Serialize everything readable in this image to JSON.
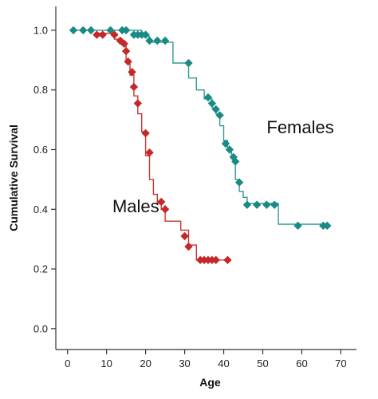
{
  "chart_data": {
    "type": "line",
    "title": "",
    "xlabel": "Age",
    "ylabel": "Cumulative Survival",
    "xlim": [
      -3,
      74
    ],
    "ylim": [
      -0.07,
      1.08
    ],
    "xticks": [
      0,
      10,
      20,
      30,
      40,
      50,
      60,
      70
    ],
    "xtick_labels": [
      "0",
      "10",
      "20",
      "30",
      "40",
      "50",
      "60",
      "70"
    ],
    "yticks": [
      0.0,
      0.2,
      0.4,
      0.6,
      0.8,
      1.0
    ],
    "ytick_labels": [
      "0.0",
      "0.2",
      "0.4",
      "0.6",
      "0.8",
      "1.0"
    ],
    "grid": false,
    "legend": "inline labels",
    "series": [
      {
        "name": "Females",
        "color": "#1a8a84",
        "line_color": "#2e9a94",
        "step_x": [
          1,
          19,
          19,
          21,
          21,
          27,
          27,
          31,
          31,
          33,
          33,
          35,
          35,
          37,
          37,
          38,
          38,
          39,
          39,
          40,
          40,
          41,
          41,
          42,
          42,
          43,
          43,
          44,
          44,
          45,
          45,
          46,
          46,
          54,
          54,
          67
        ],
        "step_y": [
          1.0,
          1.0,
          0.98,
          0.98,
          0.96,
          0.96,
          0.89,
          0.89,
          0.84,
          0.84,
          0.8,
          0.8,
          0.77,
          0.77,
          0.74,
          0.74,
          0.72,
          0.72,
          0.68,
          0.68,
          0.63,
          0.63,
          0.6,
          0.6,
          0.57,
          0.57,
          0.5,
          0.5,
          0.46,
          0.46,
          0.44,
          0.44,
          0.42,
          0.42,
          0.35,
          0.35
        ],
        "points_x": [
          1.5,
          4,
          6,
          11,
          14,
          15,
          17,
          18,
          19,
          20,
          21,
          23,
          25,
          31,
          36,
          37,
          38,
          39,
          40.5,
          41.5,
          42.5,
          43,
          44,
          46,
          48.5,
          51,
          53,
          59,
          65.5,
          66.5
        ],
        "points_y": [
          1.0,
          1.0,
          1.0,
          1.0,
          1.0,
          1.0,
          0.985,
          0.985,
          0.985,
          0.985,
          0.965,
          0.965,
          0.965,
          0.89,
          0.775,
          0.755,
          0.735,
          0.715,
          0.62,
          0.6,
          0.575,
          0.56,
          0.49,
          0.415,
          0.415,
          0.415,
          0.415,
          0.345,
          0.345,
          0.345
        ]
      },
      {
        "name": "Males",
        "color": "#c42828",
        "line_color": "#cc3333",
        "step_x": [
          8,
          12,
          12,
          14,
          14,
          15,
          15,
          16,
          16,
          17,
          17,
          18,
          18,
          19,
          19,
          20,
          20,
          21,
          21,
          22,
          22,
          23,
          23,
          24,
          24,
          25,
          25,
          29,
          29,
          31,
          31,
          33,
          33,
          41
        ],
        "step_y": [
          0.99,
          0.99,
          0.97,
          0.97,
          0.95,
          0.95,
          0.9,
          0.9,
          0.85,
          0.85,
          0.78,
          0.78,
          0.72,
          0.72,
          0.66,
          0.66,
          0.58,
          0.58,
          0.5,
          0.5,
          0.45,
          0.45,
          0.42,
          0.42,
          0.4,
          0.4,
          0.36,
          0.36,
          0.33,
          0.33,
          0.28,
          0.28,
          0.23,
          0.23
        ],
        "points_x": [
          7.5,
          9,
          12,
          13.5,
          14.5,
          15,
          15.5,
          16.5,
          17,
          18,
          20,
          21,
          24,
          25,
          30,
          31,
          34,
          35,
          36,
          37,
          38,
          41
        ],
        "points_y": [
          0.985,
          0.985,
          0.985,
          0.965,
          0.955,
          0.93,
          0.895,
          0.86,
          0.81,
          0.755,
          0.655,
          0.59,
          0.425,
          0.4,
          0.31,
          0.275,
          0.23,
          0.23,
          0.23,
          0.23,
          0.23,
          0.23
        ]
      }
    ],
    "annotations": [
      {
        "text": "Females",
        "x": 51,
        "y": 0.655,
        "series": "Females"
      },
      {
        "text": "Males",
        "x": 11.5,
        "y": 0.39,
        "series": "Males"
      }
    ],
    "axis_color": "#333333"
  }
}
